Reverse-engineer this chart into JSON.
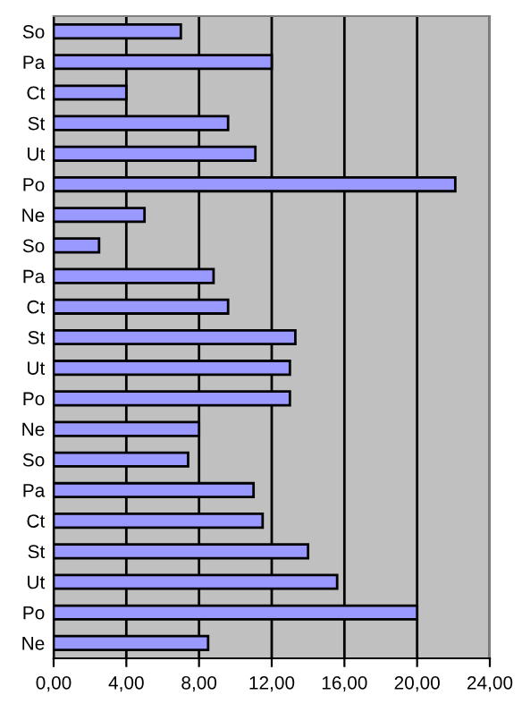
{
  "chart_data": {
    "type": "bar",
    "orientation": "horizontal",
    "categories": [
      "So",
      "Pa",
      "Ct",
      "St",
      "Ut",
      "Po",
      "Ne",
      "So",
      "Pa",
      "Ct",
      "St",
      "Ut",
      "Po",
      "Ne",
      "So",
      "Pa",
      "Ct",
      "St",
      "Ut",
      "Po",
      "Ne"
    ],
    "values": [
      7.0,
      12.0,
      4.0,
      9.6,
      11.1,
      22.1,
      5.0,
      2.5,
      8.8,
      9.6,
      13.3,
      13.0,
      13.0,
      8.0,
      7.4,
      11.0,
      11.5,
      14.0,
      15.6,
      20.0,
      8.5
    ],
    "color": "#9999ff",
    "xlim": [
      0,
      24
    ],
    "xticks": [
      {
        "value": 0,
        "label": "0,00"
      },
      {
        "value": 4,
        "label": "4,00"
      },
      {
        "value": 8,
        "label": "8,00"
      },
      {
        "value": 12,
        "label": "12,00"
      },
      {
        "value": 16,
        "label": "16,00"
      },
      {
        "value": 20,
        "label": "20,00"
      },
      {
        "value": 24,
        "label": "24,00"
      }
    ],
    "grid": "x",
    "legend": false
  }
}
